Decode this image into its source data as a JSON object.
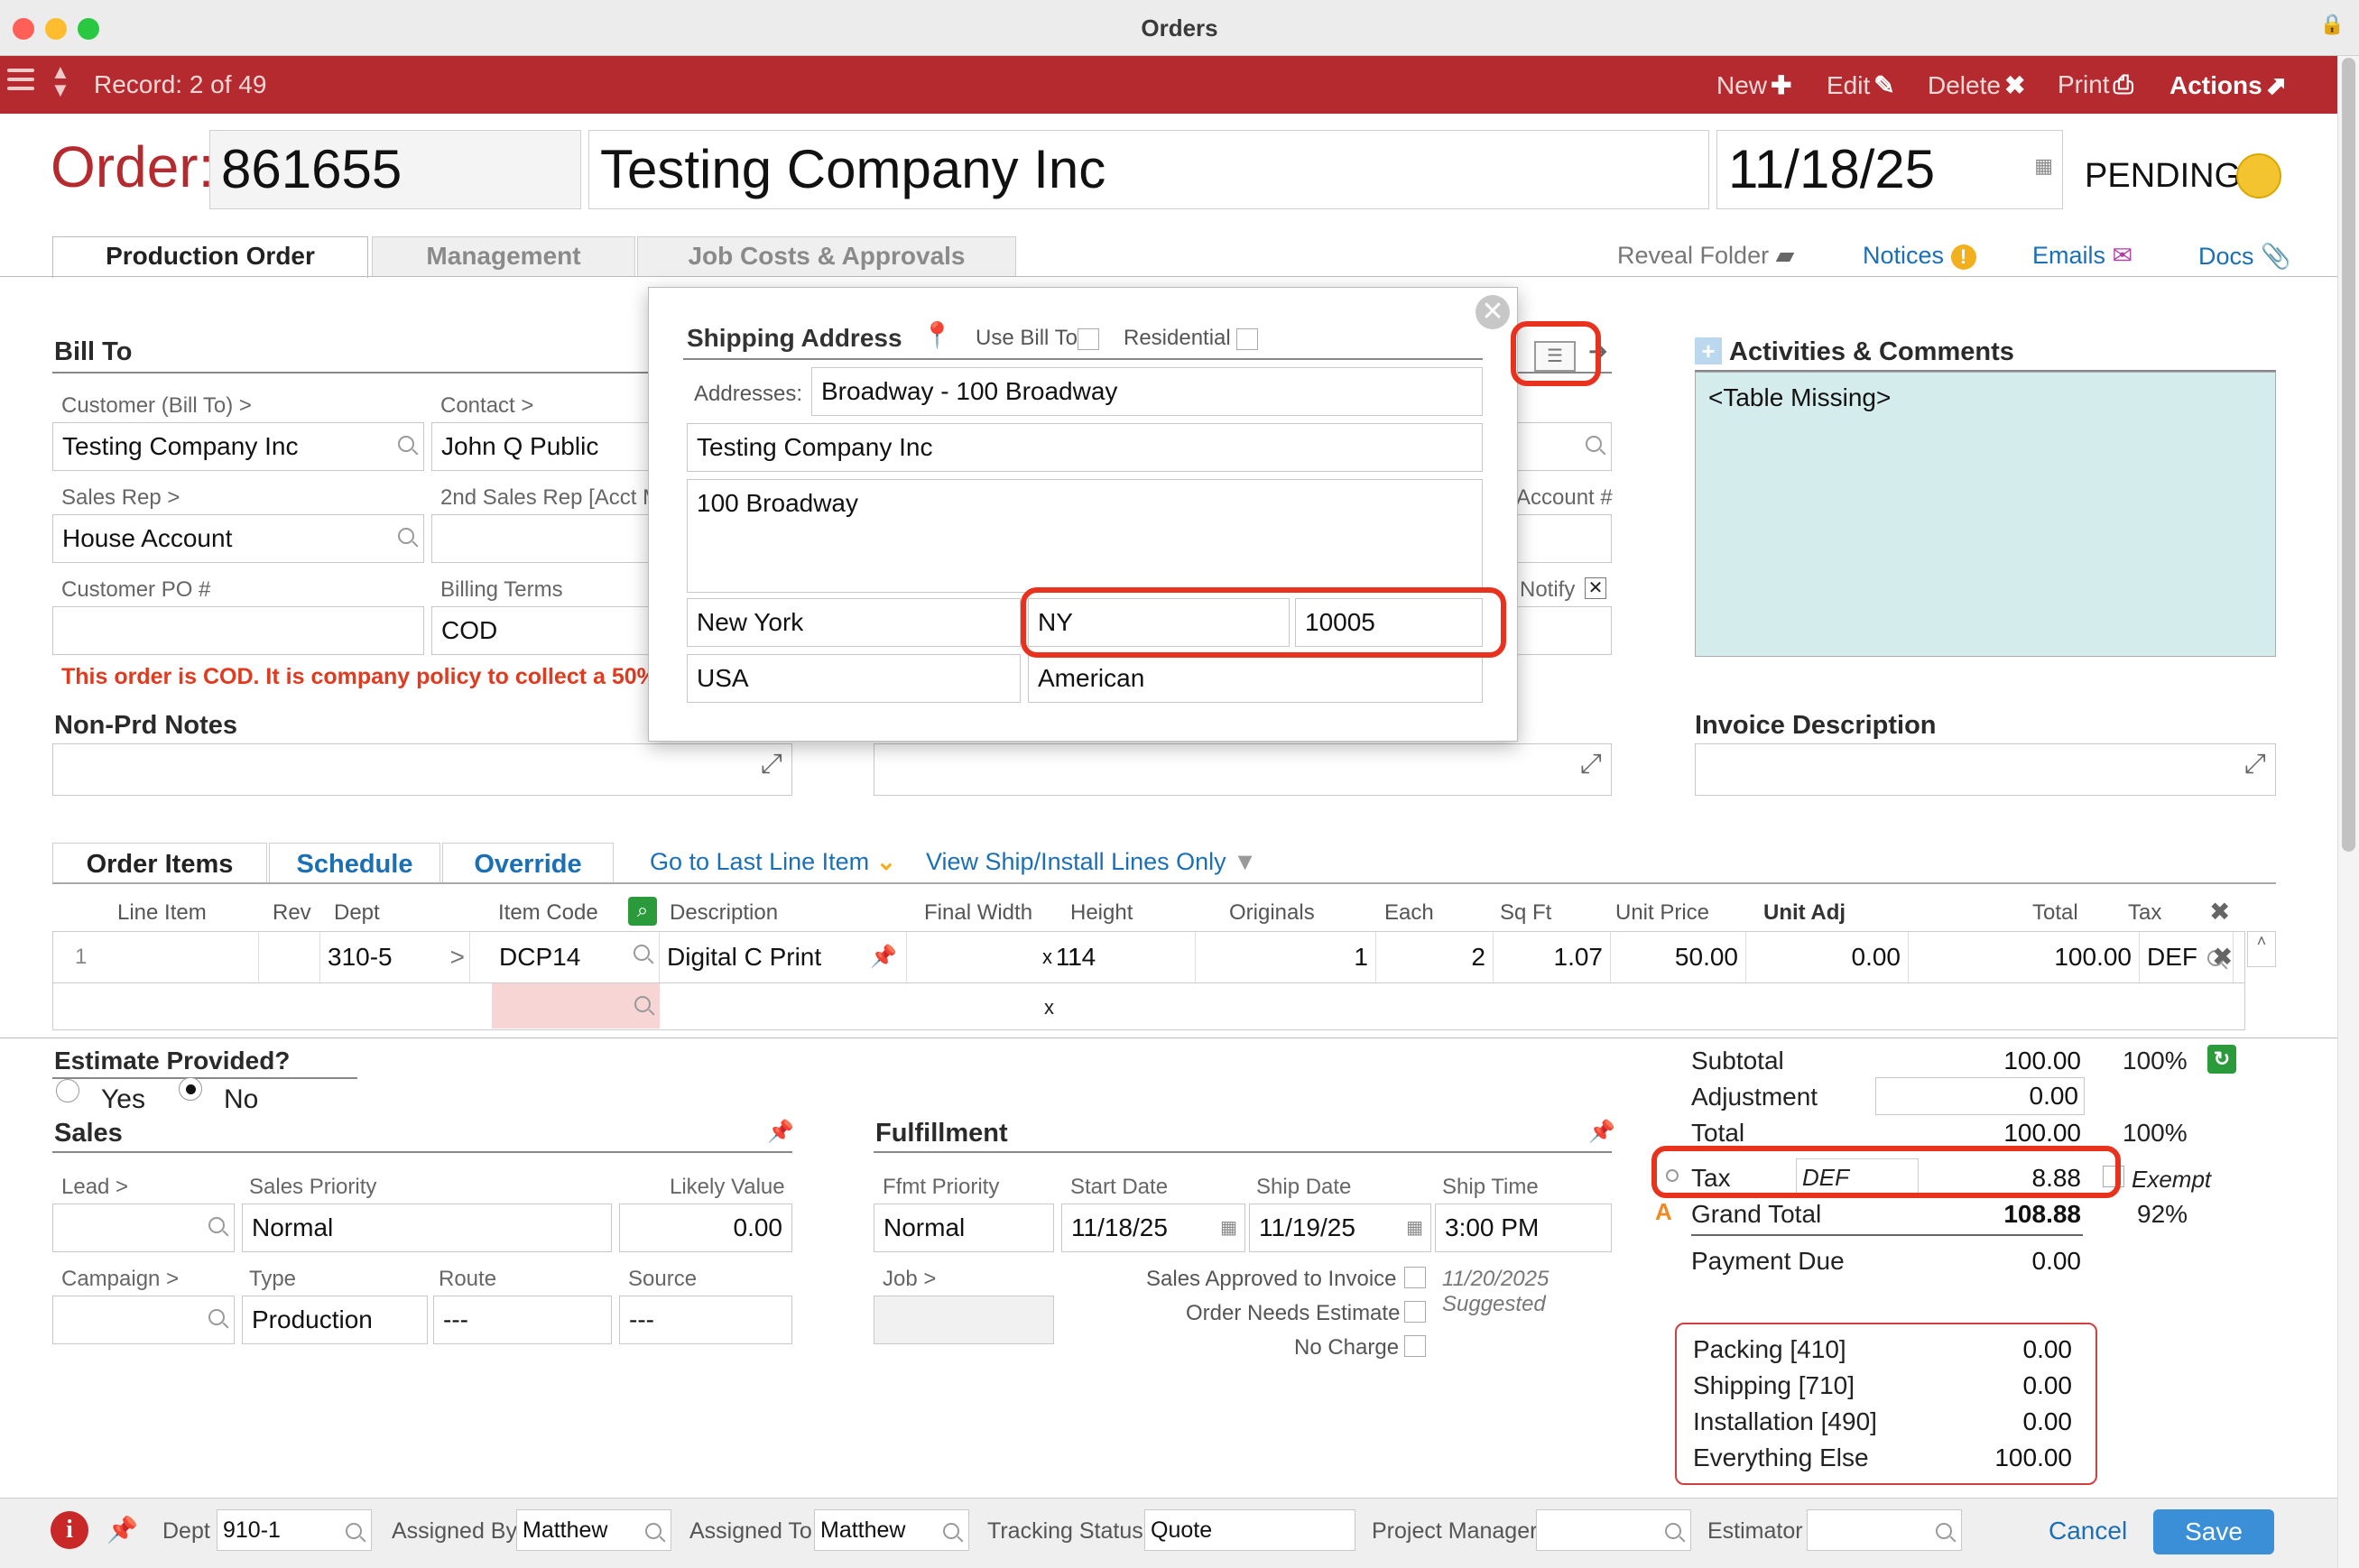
{
  "window": {
    "title": "Orders"
  },
  "toolbar": {
    "record": "Record: 2 of 49",
    "new": "New",
    "edit": "Edit",
    "delete": "Delete",
    "print": "Print",
    "actions": "Actions"
  },
  "header": {
    "order_label": "Order:",
    "order_number": "861655",
    "company": "Testing Company Inc",
    "date": "11/18/25",
    "status": "PENDING",
    "status_color": "#f4c430"
  },
  "tabs": [
    "Production Order",
    "Management",
    "Job Costs & Approvals"
  ],
  "header_links": {
    "reveal_folder": "Reveal Folder",
    "notices": "Notices",
    "emails": "Emails",
    "docs": "Docs"
  },
  "bill_to": {
    "title": "Bill To",
    "customer_label": "Customer (Bill To) >",
    "customer": "Testing Company Inc",
    "contact_label": "Contact >",
    "contact": "John Q Public",
    "sales_rep_label": "Sales Rep >",
    "sales_rep": "House Account",
    "sales_rep2_label": "2nd Sales Rep [Acct M",
    "po_label": "Customer PO #",
    "po": "",
    "terms_label": "Billing Terms",
    "terms": "COD",
    "account_label": "Account #",
    "notify_label": "Notify",
    "warning": "This order is COD. It is company policy to collect a 50%"
  },
  "shipping": {
    "title": "Shipping Address",
    "use_bill_to": "Use Bill To",
    "residential": "Residential",
    "addresses_label": "Addresses:",
    "address_select": "Broadway - 100 Broadway",
    "company": "Testing Company Inc",
    "street": "100 Broadway",
    "city": "New York",
    "state": "NY",
    "zip": "10005",
    "country": "USA",
    "tax_region": "American"
  },
  "activities": {
    "title": "Activities & Comments",
    "content": "<Table Missing>"
  },
  "non_prd_notes": {
    "title": "Non-Prd Notes"
  },
  "invoice_description": {
    "title": "Invoice Description"
  },
  "order_items": {
    "tabs": [
      "Order Items",
      "Schedule",
      "Override"
    ],
    "go_last": "Go to Last Line Item",
    "view_ship": "View Ship/Install Lines Only",
    "columns": [
      "Line Item",
      "Rev",
      "Dept",
      "Item Code",
      "Description",
      "Final Width",
      "Height",
      "Originals",
      "Each",
      "Sq Ft",
      "Unit Price",
      "Unit Adj",
      "Total",
      "Tax"
    ],
    "rows": [
      {
        "line": "1",
        "rev": "",
        "dept": "310-5",
        "item_code": "DCP14",
        "description": "Digital C Print",
        "width": "11",
        "x": "x",
        "height": "14",
        "originals": "1",
        "each": "2",
        "sqft": "1.07",
        "unit_price": "50.00",
        "unit_adj": "0.00",
        "total": "100.00",
        "tax": "DEF"
      }
    ],
    "empty_x": "x"
  },
  "estimate": {
    "title": "Estimate Provided?",
    "yes": "Yes",
    "no": "No"
  },
  "sales": {
    "title": "Sales",
    "lead_label": "Lead >",
    "lead": "",
    "priority_label": "Sales Priority",
    "priority": "Normal",
    "likely_label": "Likely Value",
    "likely": "0.00",
    "campaign_label": "Campaign >",
    "campaign": "",
    "type_label": "Type",
    "type": "Production",
    "route_label": "Route",
    "route": "---",
    "source_label": "Source",
    "source": "---"
  },
  "fulfillment": {
    "title": "Fulfillment",
    "ffmt_label": "Ffmt Priority",
    "ffmt": "Normal",
    "start_label": "Start Date",
    "start": "11/18/25",
    "ship_label": "Ship Date",
    "ship": "11/19/25",
    "time_label": "Ship Time",
    "time": "3:00 PM",
    "job_label": "Job >",
    "approved_label": "Sales Approved to Invoice",
    "approved_date": "11/20/2025",
    "suggested": "Suggested",
    "needs_estimate_label": "Order Needs Estimate",
    "no_charge_label": "No Charge"
  },
  "totals": {
    "subtotal_label": "Subtotal",
    "subtotal": "100.00",
    "subtotal_pct": "100%",
    "adjustment_label": "Adjustment",
    "adjustment": "0.00",
    "total_label": "Total",
    "total": "100.00",
    "total_pct": "100%",
    "tax_label": "Tax",
    "tax_code": "DEF",
    "tax": "8.88",
    "exempt": "Exempt",
    "grand_label": "Grand Total",
    "grand": "108.88",
    "grand_pct": "92%",
    "payment_label": "Payment Due",
    "payment": "0.00"
  },
  "breakdown": [
    {
      "label": "Packing [410]",
      "value": "0.00"
    },
    {
      "label": "Shipping [710]",
      "value": "0.00"
    },
    {
      "label": "Installation [490]",
      "value": "0.00"
    },
    {
      "label": "Everything Else",
      "value": "100.00"
    }
  ],
  "footer": {
    "dept_label": "Dept",
    "dept": "910-1",
    "assigned_by_label": "Assigned By",
    "assigned_by": "Matthew",
    "assigned_to_label": "Assigned To",
    "assigned_to": "Matthew",
    "tracking_label": "Tracking Status",
    "tracking": "Quote",
    "pm_label": "Project Manager",
    "pm": "",
    "estimator_label": "Estimator",
    "estimator": "",
    "cancel": "Cancel",
    "save": "Save"
  }
}
